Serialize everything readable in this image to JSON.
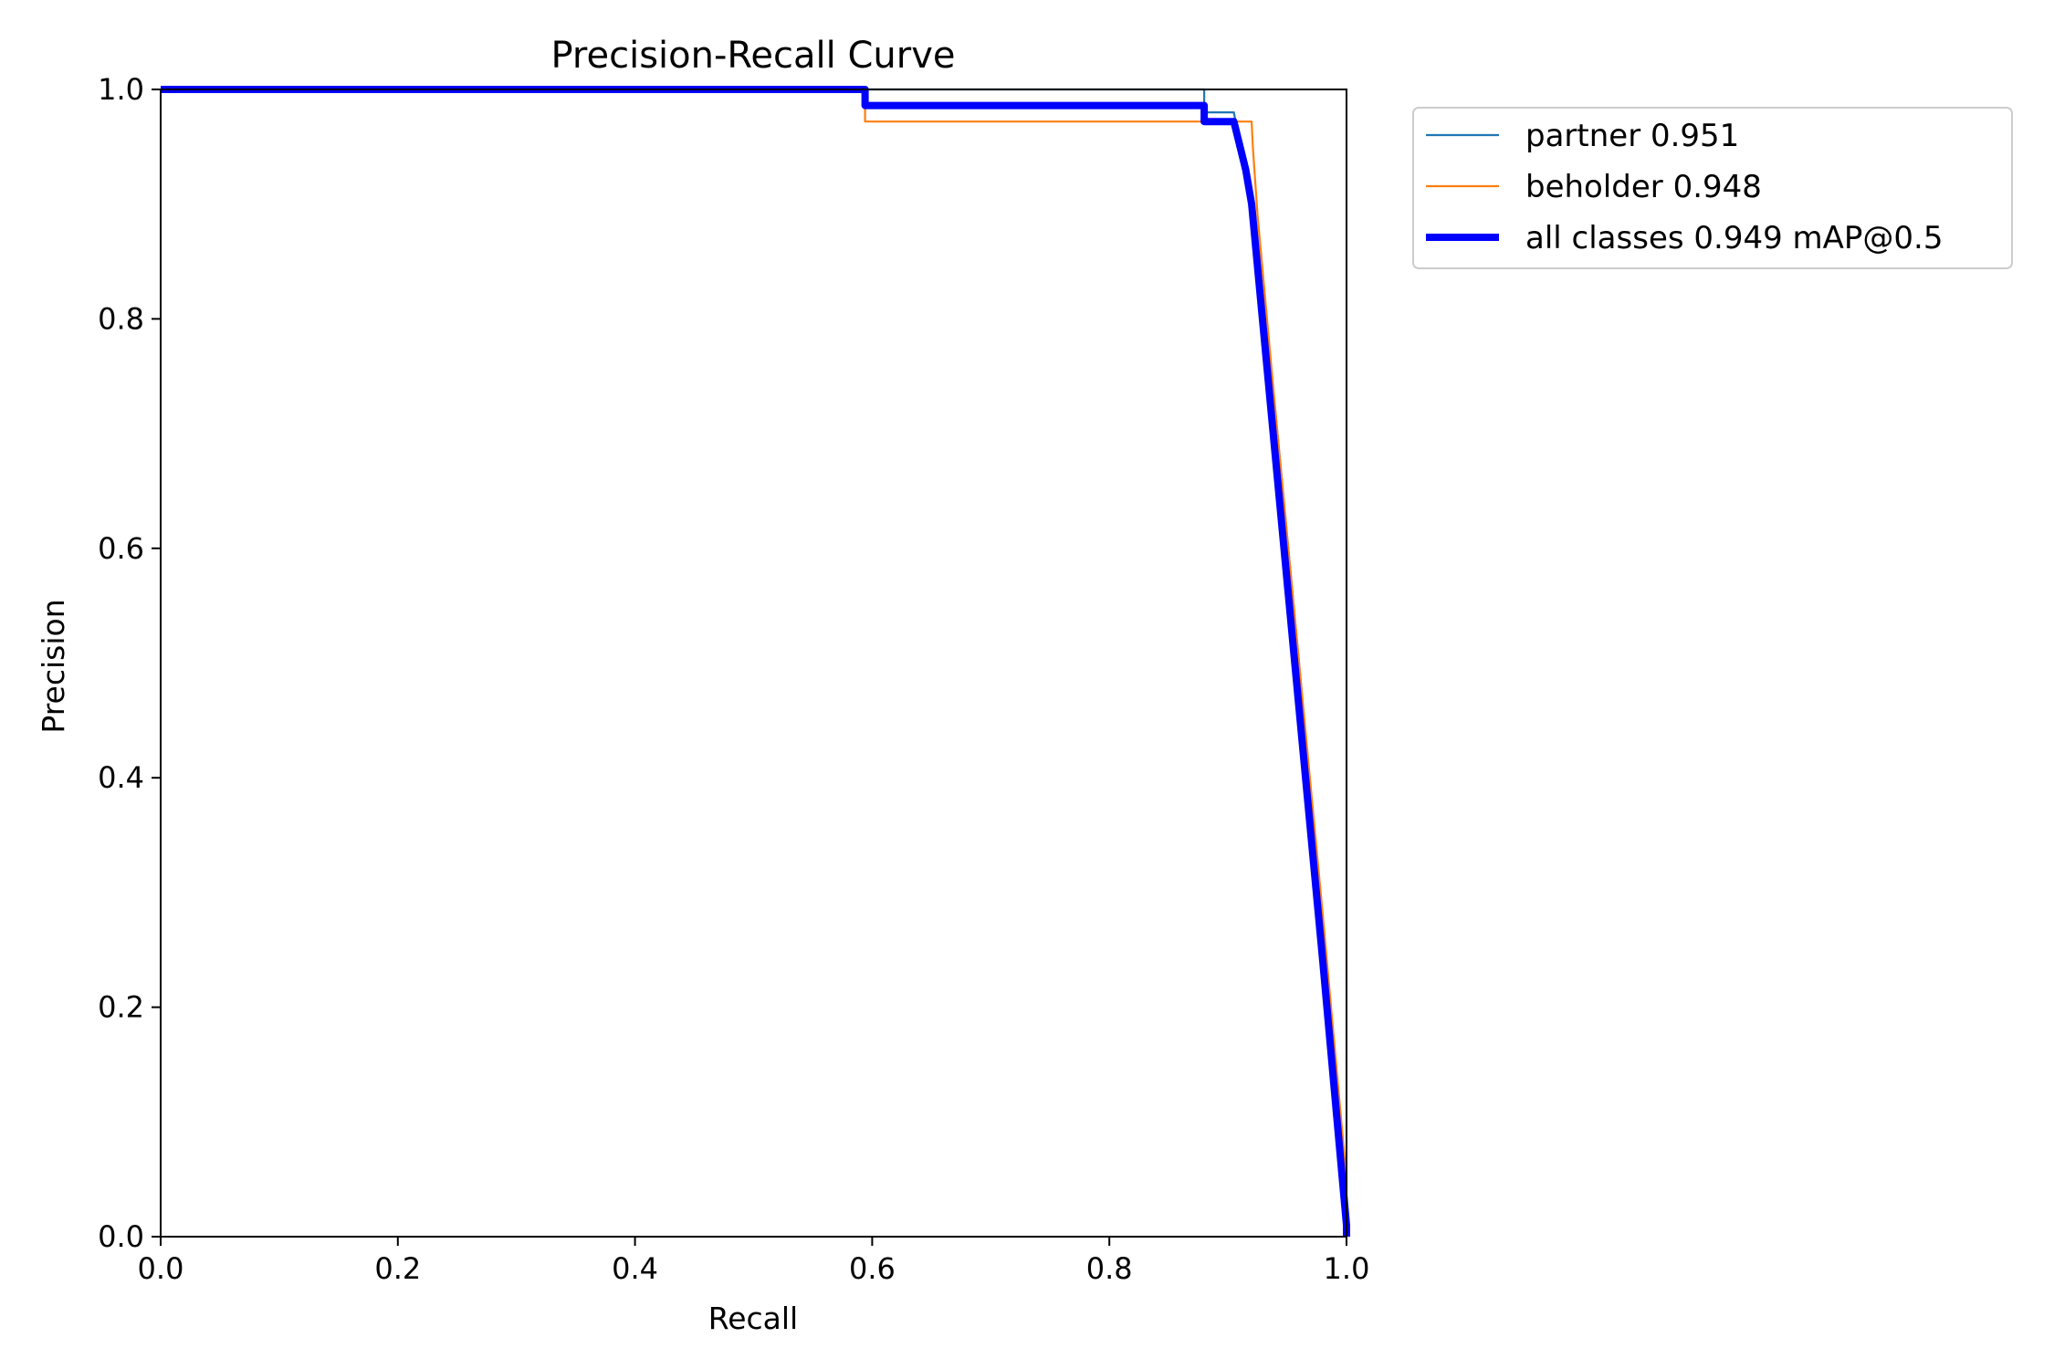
{
  "chart_data": {
    "type": "line",
    "title": "Precision-Recall Curve",
    "xlabel": "Recall",
    "ylabel": "Precision",
    "xlim": [
      0.0,
      1.0
    ],
    "ylim": [
      0.0,
      1.0
    ],
    "xticks": [
      "0.0",
      "0.2",
      "0.4",
      "0.6",
      "0.8",
      "1.0"
    ],
    "yticks": [
      "0.0",
      "0.2",
      "0.4",
      "0.6",
      "0.8",
      "1.0"
    ],
    "grid": false,
    "legend_position": "outside-top-right",
    "series": [
      {
        "name": "partner 0.951",
        "color": "#1f77b4",
        "linewidth": "thin",
        "points": [
          [
            0.0,
            1.0
          ],
          [
            0.88,
            1.0
          ],
          [
            0.88,
            0.98
          ],
          [
            0.905,
            0.98
          ],
          [
            0.92,
            0.9
          ],
          [
            0.94,
            0.72
          ],
          [
            0.96,
            0.5
          ],
          [
            0.98,
            0.27
          ],
          [
            1.0,
            0.03
          ],
          [
            1.0,
            0.0
          ]
        ]
      },
      {
        "name": "beholder 0.948",
        "color": "#ff7f0e",
        "linewidth": "thin",
        "points": [
          [
            0.0,
            1.0
          ],
          [
            0.594,
            1.0
          ],
          [
            0.594,
            0.972
          ],
          [
            0.92,
            0.972
          ],
          [
            0.921,
            0.95
          ],
          [
            0.925,
            0.89
          ],
          [
            0.94,
            0.72
          ],
          [
            0.96,
            0.5
          ],
          [
            0.98,
            0.28
          ],
          [
            1.0,
            0.05
          ],
          [
            1.0,
            0.0
          ]
        ]
      },
      {
        "name": "all classes 0.949 mAP@0.5",
        "color": "#0000ff",
        "linewidth": "thick",
        "points": [
          [
            0.0,
            1.0
          ],
          [
            0.594,
            1.0
          ],
          [
            0.594,
            0.986
          ],
          [
            0.88,
            0.986
          ],
          [
            0.88,
            0.972
          ],
          [
            0.905,
            0.972
          ],
          [
            0.915,
            0.93
          ],
          [
            0.92,
            0.9
          ],
          [
            0.94,
            0.68
          ],
          [
            0.96,
            0.46
          ],
          [
            0.98,
            0.24
          ],
          [
            1.0,
            0.01
          ],
          [
            1.0,
            0.0
          ]
        ]
      }
    ]
  }
}
